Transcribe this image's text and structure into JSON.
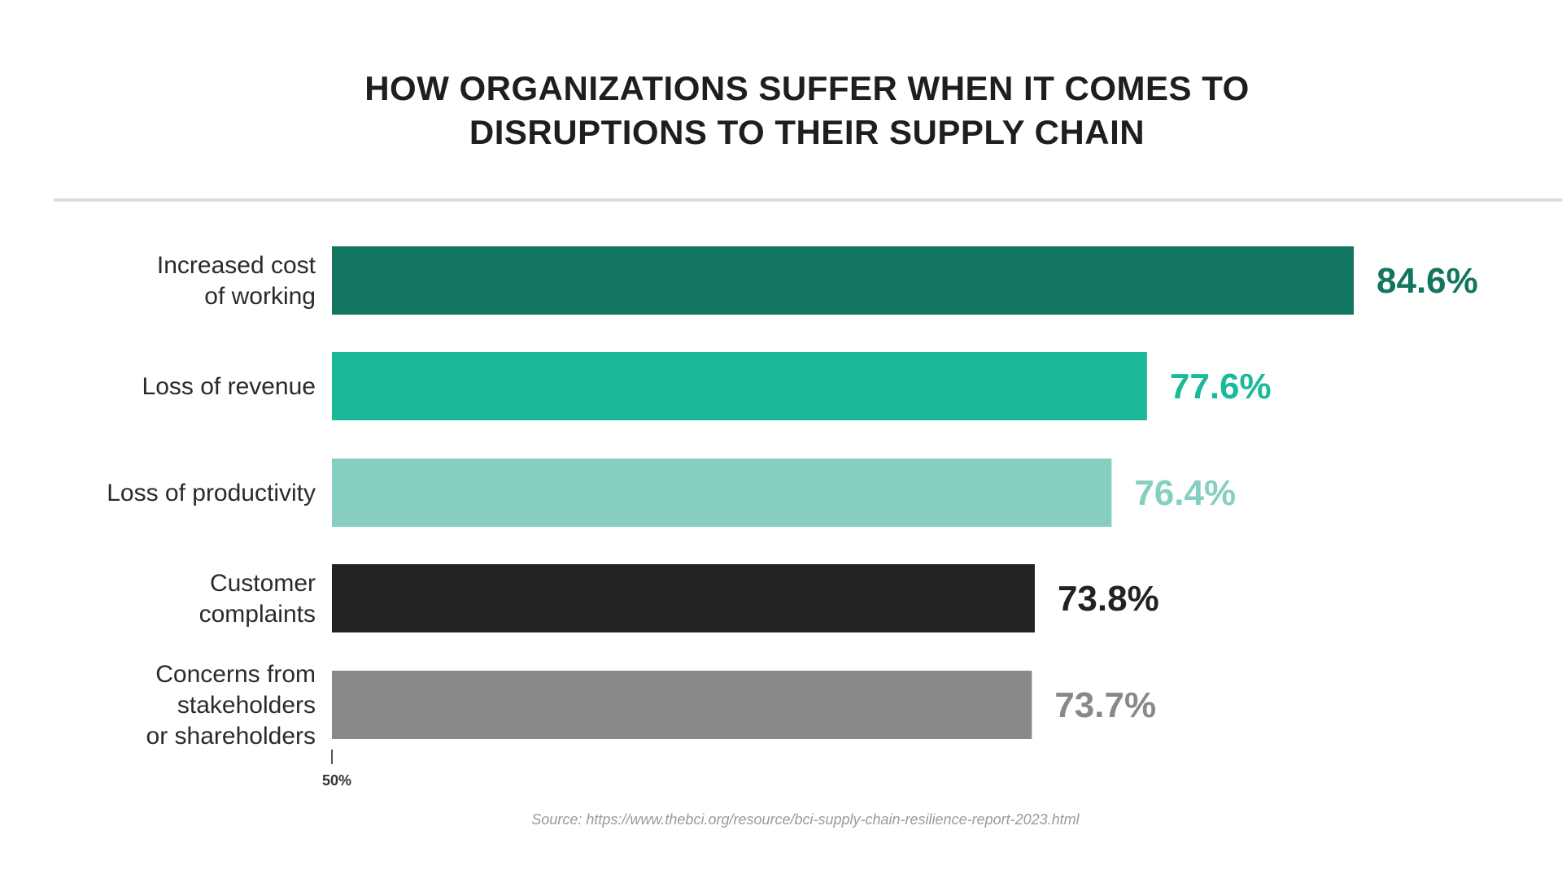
{
  "chart_data": {
    "type": "bar",
    "orientation": "horizontal",
    "title": "HOW ORGANIZATIONS SUFFER WHEN IT COMES TO DISRUPTIONS TO THEIR SUPPLY CHAIN",
    "title_lines": [
      "HOW ORGANIZATIONS SUFFER WHEN IT COMES TO",
      "DISRUPTIONS TO THEIR SUPPLY CHAIN"
    ],
    "categories": [
      [
        "Increased cost",
        "of working"
      ],
      [
        "Loss of revenue"
      ],
      [
        "Loss of productivity"
      ],
      [
        "Customer",
        "complaints"
      ],
      [
        "Concerns from",
        "stakeholders",
        "or shareholders"
      ]
    ],
    "values": [
      84.6,
      77.6,
      76.4,
      73.8,
      73.7
    ],
    "value_labels": [
      "84.6%",
      "77.6%",
      "76.4%",
      "73.8%",
      "73.7%"
    ],
    "colors": [
      "#127560",
      "#1ab99a",
      "#86cfc0",
      "#222222",
      "#888888"
    ],
    "xlim": [
      50,
      84.6
    ],
    "x_tick_labels": [
      "50%"
    ],
    "xlabel": "",
    "ylabel": "",
    "grid": false,
    "source": "Source: https://www.thebci.org/resource/bci-supply-chain-resilience-report-2023.html"
  }
}
